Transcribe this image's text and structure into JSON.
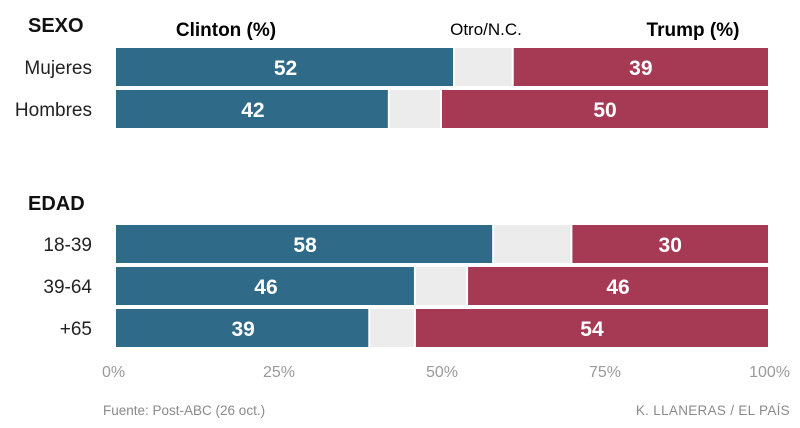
{
  "chart_data": {
    "type": "bar",
    "orientation": "horizontal",
    "stacked": true,
    "xlim": [
      0,
      100
    ],
    "x_ticks": [
      "0%",
      "25%",
      "50%",
      "75%",
      "100%"
    ],
    "series": [
      {
        "name": "Clinton (%)",
        "color": "#2f6a88"
      },
      {
        "name": "Otro/N.C.",
        "color": "#ececec"
      },
      {
        "name": "Trump (%)",
        "color": "#a63a55"
      }
    ],
    "groups": [
      {
        "title": "SEXO",
        "rows": [
          {
            "label": "Mujeres",
            "clinton": 52,
            "trump": 39
          },
          {
            "label": "Hombres",
            "clinton": 42,
            "trump": 50
          }
        ]
      },
      {
        "title": "EDAD",
        "rows": [
          {
            "label": "18-39",
            "clinton": 58,
            "trump": 30
          },
          {
            "label": "39-64",
            "clinton": 46,
            "trump": 46
          },
          {
            "label": "+65",
            "clinton": 39,
            "trump": 54
          }
        ]
      }
    ],
    "source": "Fuente: Post-ABC (26 oct.)",
    "credit": "K. LLANERAS  /  EL PAÍS"
  }
}
